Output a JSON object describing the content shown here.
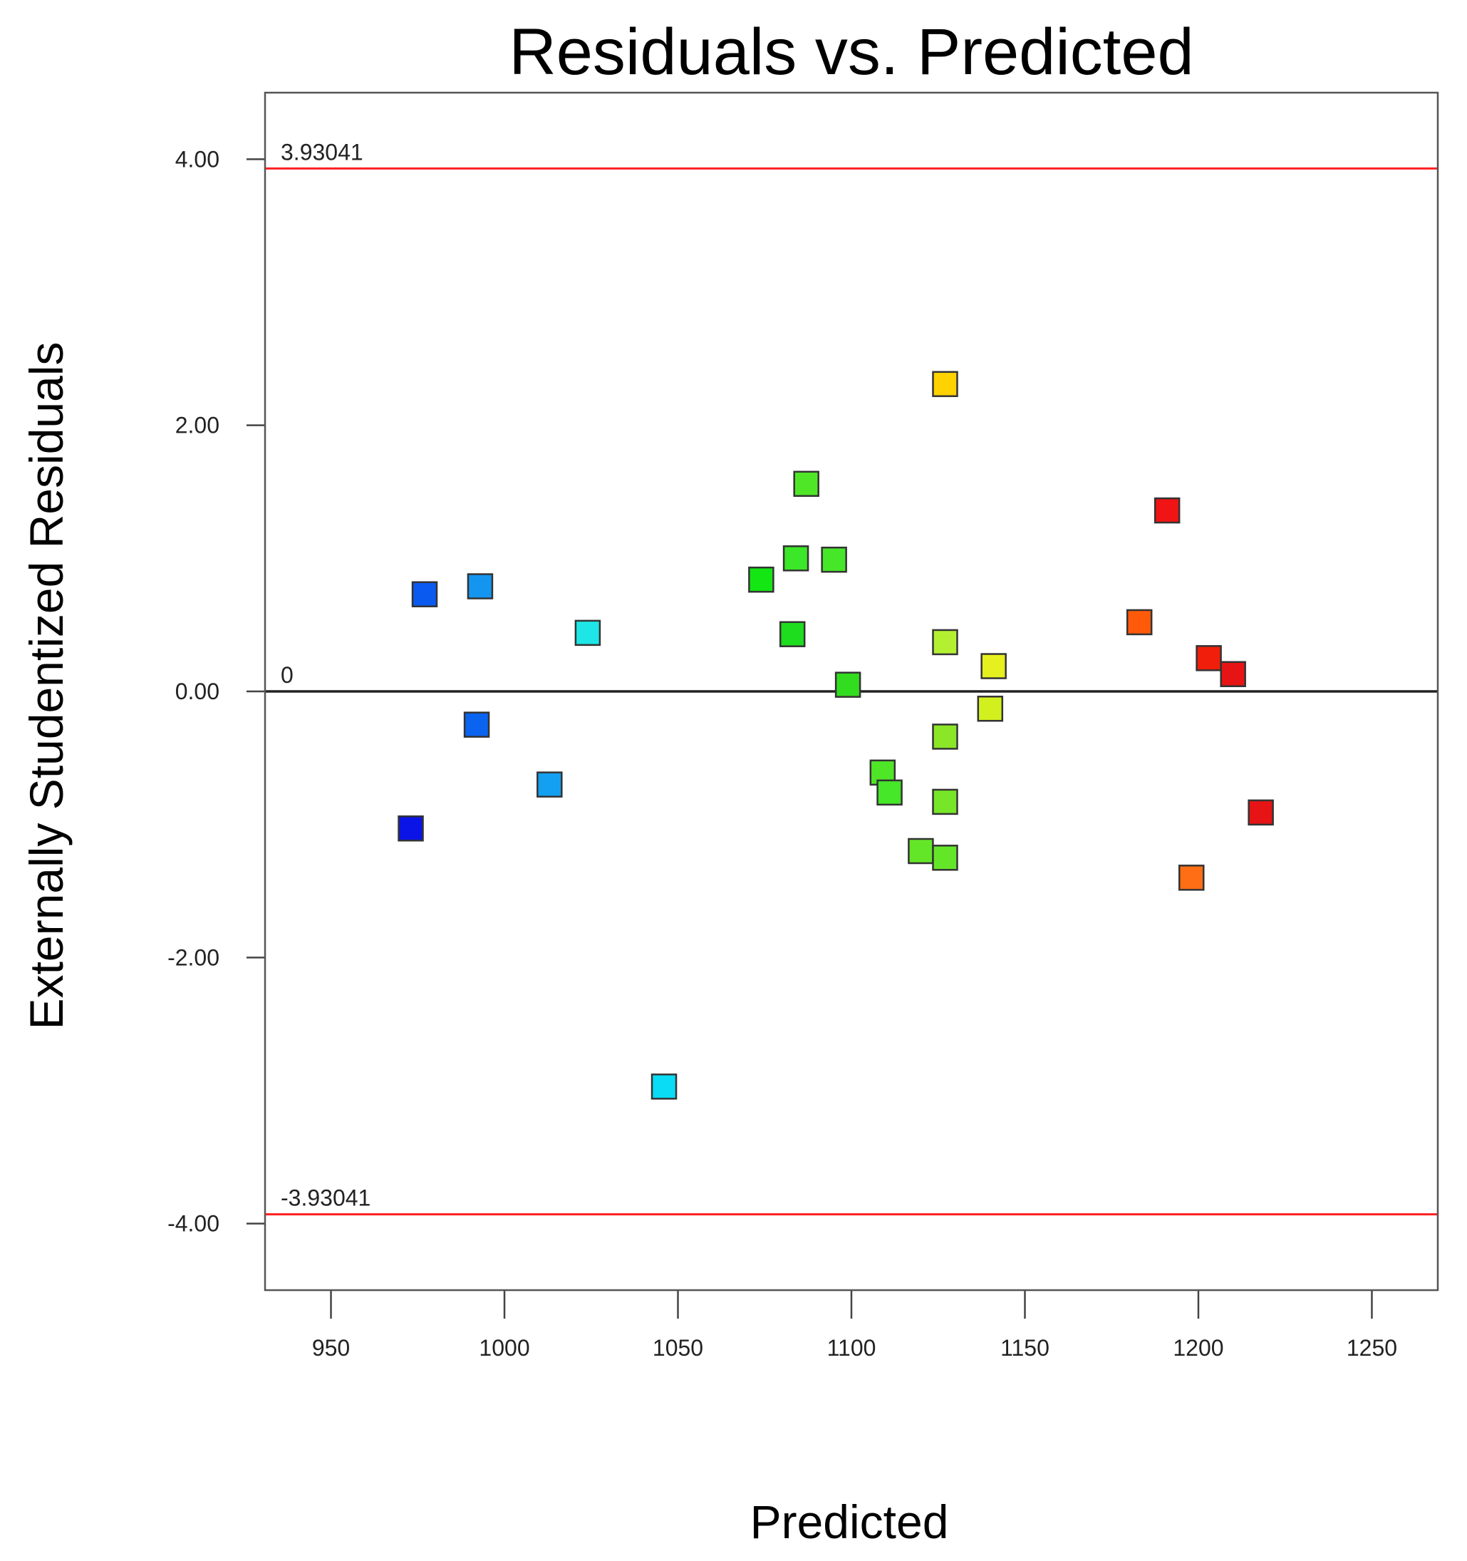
{
  "chart_data": {
    "type": "scatter",
    "title": "Residuals vs. Predicted",
    "xlabel": "Predicted",
    "ylabel": "Externally Studentized Residuals",
    "xlim": [
      931,
      1269
    ],
    "ylim": [
      -4.5,
      4.5
    ],
    "x_ticks": [
      {
        "value": 950,
        "label": "950"
      },
      {
        "value": 1000,
        "label": "1000"
      },
      {
        "value": 1050,
        "label": "1050"
      },
      {
        "value": 1100,
        "label": "1100"
      },
      {
        "value": 1150,
        "label": "1150"
      },
      {
        "value": 1200,
        "label": "1200"
      },
      {
        "value": 1250,
        "label": "1250"
      }
    ],
    "y_ticks": [
      {
        "value": 4,
        "label": "4.00"
      },
      {
        "value": 2,
        "label": "2.00"
      },
      {
        "value": 0,
        "label": "0.00"
      },
      {
        "value": -2,
        "label": "-2.00"
      },
      {
        "value": -4,
        "label": "-4.00"
      }
    ],
    "reference_lines": [
      {
        "value": 3.93041,
        "label": "3.93041",
        "color": "#ff2020"
      },
      {
        "value": 0,
        "label": "0",
        "color": "#222222"
      },
      {
        "value": -3.93041,
        "label": "-3.93041",
        "color": "#ff2020"
      }
    ],
    "points": [
      {
        "x": 973,
        "y": -1.03,
        "color": "#0a14e6"
      },
      {
        "x": 977,
        "y": 0.73,
        "color": "#0a5af0"
      },
      {
        "x": 992,
        "y": -0.25,
        "color": "#0a64f0"
      },
      {
        "x": 993,
        "y": 0.79,
        "color": "#1496f0"
      },
      {
        "x": 1013,
        "y": -0.7,
        "color": "#14a0f0"
      },
      {
        "x": 1024,
        "y": 0.44,
        "color": "#1ee6e6"
      },
      {
        "x": 1046,
        "y": -2.97,
        "color": "#0adcf5"
      },
      {
        "x": 1074,
        "y": 0.84,
        "color": "#14e614"
      },
      {
        "x": 1083,
        "y": 0.43,
        "color": "#1edc1e"
      },
      {
        "x": 1084,
        "y": 1.0,
        "color": "#3ce628"
      },
      {
        "x": 1087,
        "y": 1.56,
        "color": "#50e628"
      },
      {
        "x": 1095,
        "y": 0.99,
        "color": "#46e628"
      },
      {
        "x": 1099,
        "y": 0.05,
        "color": "#32dc1e"
      },
      {
        "x": 1109,
        "y": -0.61,
        "color": "#50e628"
      },
      {
        "x": 1111,
        "y": -0.76,
        "color": "#46e628"
      },
      {
        "x": 1120,
        "y": -1.2,
        "color": "#64e628"
      },
      {
        "x": 1127,
        "y": 2.31,
        "color": "#ffd200"
      },
      {
        "x": 1127,
        "y": 0.37,
        "color": "#b4f032"
      },
      {
        "x": 1127,
        "y": -0.34,
        "color": "#8ce628"
      },
      {
        "x": 1127,
        "y": -0.83,
        "color": "#78e628"
      },
      {
        "x": 1127,
        "y": -1.25,
        "color": "#64e628"
      },
      {
        "x": 1141,
        "y": 0.19,
        "color": "#e6f01e"
      },
      {
        "x": 1140,
        "y": -0.13,
        "color": "#d2f01e"
      },
      {
        "x": 1183,
        "y": 0.52,
        "color": "#ff5a0a"
      },
      {
        "x": 1191,
        "y": 1.36,
        "color": "#f01414"
      },
      {
        "x": 1198,
        "y": -1.4,
        "color": "#ff6e14"
      },
      {
        "x": 1203,
        "y": 0.25,
        "color": "#f01e0a"
      },
      {
        "x": 1210,
        "y": 0.13,
        "color": "#e61414"
      },
      {
        "x": 1218,
        "y": -0.91,
        "color": "#e61414"
      }
    ]
  }
}
